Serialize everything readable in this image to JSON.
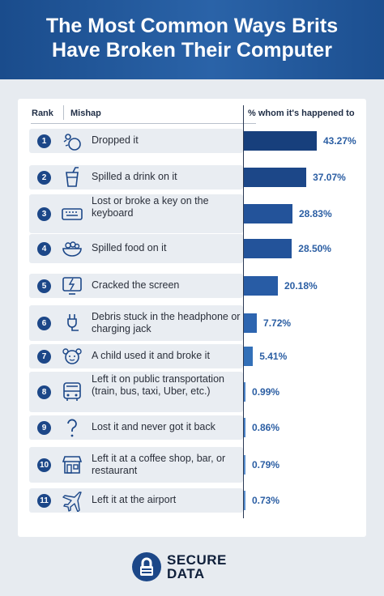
{
  "header": {
    "title_line1": "The Most Common Ways Brits",
    "title_line2": "Have Broken Their Computer"
  },
  "table": {
    "col_rank": "Rank",
    "col_mishap": "Mishap",
    "col_pct": "% whom it's happened to"
  },
  "chart_data": {
    "type": "bar",
    "orientation": "horizontal",
    "title": "The Most Common Ways Brits Have Broken Their Computer",
    "categories": [
      "Dropped it",
      "Spilled a drink on it",
      "Lost or broke a key on the keyboard",
      "Spilled food on it",
      "Cracked the screen",
      "Debris stuck in the headphone or charging jack",
      "A child used it and broke it",
      "Left it on public transportation (train, bus, taxi, Uber, etc.)",
      "Lost it and never got it back",
      "Left it at a coffee shop, bar, or restaurant",
      "Left it at the airport"
    ],
    "values": [
      43.27,
      37.07,
      28.83,
      28.5,
      20.18,
      7.72,
      5.41,
      0.99,
      0.86,
      0.79,
      0.73
    ],
    "value_labels": [
      "43.27%",
      "37.07%",
      "28.83%",
      "28.50%",
      "20.18%",
      "7.72%",
      "5.41%",
      "0.99%",
      "0.86%",
      "0.79%",
      "0.73%"
    ],
    "ranks": [
      "1",
      "2",
      "3",
      "4",
      "5",
      "6",
      "7",
      "8",
      "9",
      "10",
      "11"
    ],
    "icons": [
      "drop-icon",
      "drink-icon",
      "keyboard-icon",
      "food-bowl-icon",
      "cracked-screen-icon",
      "charging-plug-icon",
      "child-icon",
      "bus-icon",
      "question-mark-icon",
      "storefront-icon",
      "airplane-icon"
    ],
    "bar_colors": [
      "#173f7c",
      "#1c4788",
      "#23539a",
      "#23539a",
      "#285ca5",
      "#2d65b0",
      "#3370b8",
      "#4a82c6",
      "#4a82c6",
      "#5a8fcf",
      "#5a8fcf"
    ],
    "xlim": [
      0,
      50
    ],
    "xlabel": "",
    "ylabel": ""
  },
  "brand": {
    "line1": "SECURE",
    "line2": "DATA"
  },
  "colors": {
    "header": "#1f5596",
    "rank_badge": "#1c4788",
    "value_text": "#2b5ea3",
    "row_bg": "#e9edf2",
    "page_bg": "#e7ebf0"
  }
}
